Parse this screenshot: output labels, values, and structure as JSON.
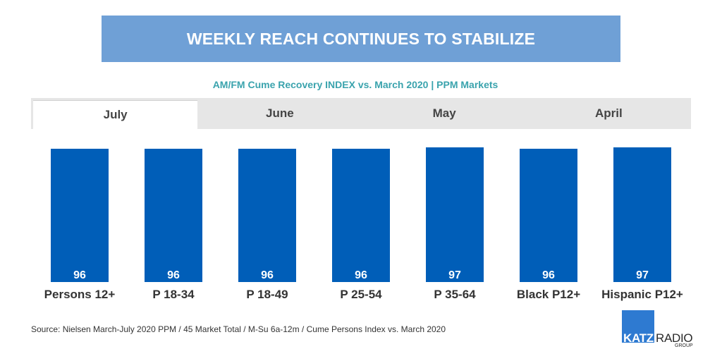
{
  "header": {
    "title": "WEEKLY REACH CONTINUES TO STABILIZE"
  },
  "subtitle": "AM/FM Cume Recovery INDEX vs. March 2020 | PPM Markets",
  "tabs": [
    {
      "label": "July",
      "active": true
    },
    {
      "label": "June",
      "active": false
    },
    {
      "label": "May",
      "active": false
    },
    {
      "label": "April",
      "active": false
    }
  ],
  "chart_data": {
    "type": "bar",
    "title": "AM/FM Cume Recovery INDEX vs. March 2020 | PPM Markets",
    "xlabel": "",
    "ylabel": "",
    "categories": [
      "Persons 12+",
      "P 18-34",
      "P 18-49",
      "P 25-54",
      "P 35-64",
      "Black P12+",
      "Hispanic P12+"
    ],
    "series": [
      {
        "name": "July",
        "values": [
          96,
          96,
          96,
          96,
          97,
          96,
          97
        ]
      }
    ],
    "ylim": [
      0,
      97
    ],
    "grid": false,
    "bar_color": "#005eb8"
  },
  "footer": {
    "source": "Source: Nielsen March-July 2020 PPM / 45 Market Total / M-Su 6a-12m / Cume Persons Index vs. March 2020"
  },
  "logo": {
    "katz": "KATZ",
    "radio": "RADIO",
    "group": "GROUP"
  },
  "colors": {
    "banner": "#6fa0d6",
    "subtitle": "#3aa3ad",
    "bar": "#005eb8",
    "logo": "#2e7ad1"
  }
}
